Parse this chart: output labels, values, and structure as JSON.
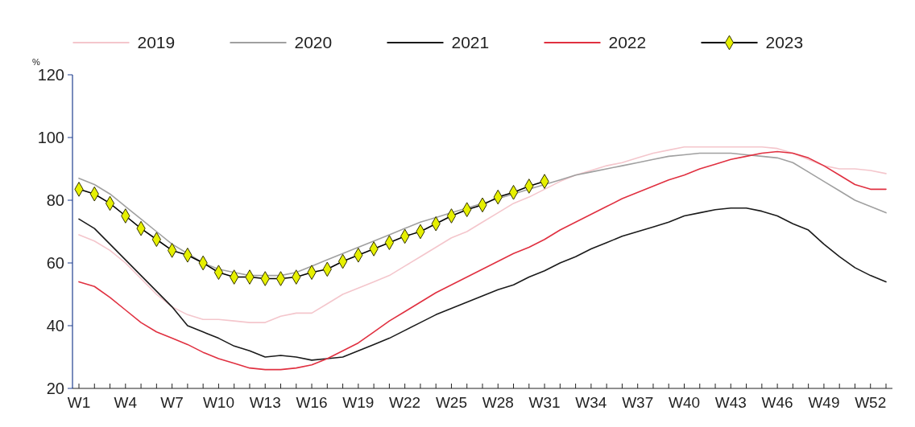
{
  "chart_data": {
    "type": "line",
    "ylabel": "%",
    "legend": "top",
    "grid": false,
    "categories": [
      "W1",
      null,
      null,
      "W4",
      null,
      null,
      "W7",
      null,
      null,
      "W10",
      null,
      null,
      "W13",
      null,
      null,
      "W16",
      null,
      null,
      "W19",
      null,
      null,
      "W22",
      null,
      null,
      "W25",
      null,
      null,
      "W28",
      null,
      null,
      "W31",
      null,
      null,
      "W34",
      null,
      null,
      "W37",
      null,
      null,
      "W40",
      null,
      null,
      "W43",
      null,
      null,
      "W46",
      null,
      null,
      "W49",
      null,
      null,
      "W52",
      null
    ],
    "ylim": [
      20,
      120
    ],
    "yticks": [
      20,
      40,
      60,
      80,
      100,
      120
    ],
    "series": [
      {
        "name": "2019",
        "color": "#f4c6cc",
        "marker": "none",
        "values": [
          69,
          67,
          64,
          60,
          55,
          50,
          46,
          43.5,
          42,
          42,
          41.5,
          41,
          41,
          43,
          44,
          44,
          47,
          50,
          52,
          54,
          56,
          59,
          62,
          65,
          68,
          70,
          73,
          76,
          79,
          81,
          83.5,
          86,
          88,
          89.5,
          91,
          92,
          93.5,
          95,
          96,
          97,
          97,
          97,
          97,
          97,
          97,
          96.5,
          95,
          93,
          91,
          90,
          90,
          89.5,
          88.5
        ]
      },
      {
        "name": "2020",
        "color": "#a0a0a0",
        "marker": "none",
        "values": [
          87,
          85,
          82,
          78,
          74,
          70,
          66,
          63,
          60,
          58,
          57,
          56,
          56,
          56,
          57,
          59,
          61,
          63,
          65,
          67,
          69,
          71,
          73,
          74.5,
          76,
          77.5,
          79,
          80.5,
          82,
          83.5,
          85,
          86.5,
          88,
          89,
          90,
          91,
          92,
          93,
          94,
          94.5,
          95,
          95,
          95,
          94.5,
          94,
          93.5,
          92,
          89,
          86,
          83,
          80,
          78,
          76
        ]
      },
      {
        "name": "2021",
        "color": "#1a1a1a",
        "marker": "none",
        "values": [
          74,
          71,
          66,
          61,
          56,
          51,
          46,
          40,
          38,
          36,
          33.5,
          32,
          30,
          30.5,
          30,
          29,
          29.5,
          30,
          32,
          34,
          36,
          38.5,
          41,
          43.5,
          45.5,
          47.5,
          49.5,
          51.5,
          53,
          55.5,
          57.5,
          60,
          62,
          64.5,
          66.5,
          68.5,
          70,
          71.5,
          73,
          75,
          76,
          77,
          77.5,
          77.5,
          76.5,
          75,
          72.5,
          70.5,
          66,
          62,
          58.5,
          56,
          54
        ]
      },
      {
        "name": "2022",
        "color": "#e03040",
        "marker": "none",
        "values": [
          54,
          52.5,
          49,
          45,
          41,
          38,
          36,
          34,
          31.5,
          29.5,
          28,
          26.5,
          26,
          26,
          26.5,
          27.5,
          29.5,
          32,
          34.5,
          38,
          41.5,
          44.5,
          47.5,
          50.5,
          53,
          55.5,
          58,
          60.5,
          63,
          65,
          67.5,
          70.5,
          73,
          75.5,
          78,
          80.5,
          82.5,
          84.5,
          86.5,
          88,
          90,
          91.5,
          93,
          94,
          95,
          95.5,
          95,
          93.5,
          91,
          88,
          85,
          83.5,
          83.5
        ]
      },
      {
        "name": "2023",
        "color": "#e6f000",
        "marker": "diamond",
        "values": [
          83.5,
          82,
          79,
          75,
          71,
          67.5,
          64,
          62.5,
          60,
          57,
          55.5,
          55.5,
          55,
          55,
          55.5,
          57,
          58,
          60.5,
          62.5,
          64.5,
          66.5,
          68.5,
          70,
          72.5,
          75,
          77,
          78.5,
          81,
          82.5,
          84.5,
          86,
          null,
          null,
          null,
          null,
          null,
          null,
          null,
          null,
          null,
          null,
          null,
          null,
          null,
          null,
          null,
          null,
          null,
          null,
          null,
          null,
          null,
          null
        ]
      }
    ]
  }
}
